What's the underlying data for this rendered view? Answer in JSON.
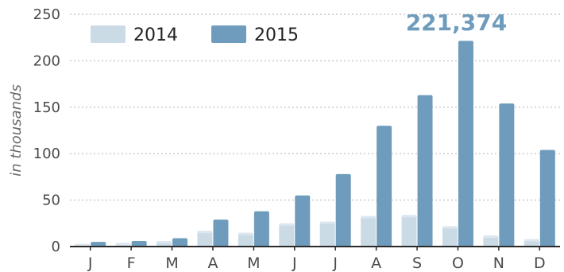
{
  "chart_data": {
    "type": "bar",
    "categories": [
      "J",
      "F",
      "M",
      "A",
      "M",
      "J",
      "J",
      "A",
      "S",
      "O",
      "N",
      "D"
    ],
    "series": [
      {
        "name": "2014",
        "color": "#cbdbe6",
        "values": [
          3,
          4,
          6,
          17,
          15,
          25,
          27,
          33,
          34,
          22,
          12,
          8
        ]
      },
      {
        "name": "2015",
        "color": "#6f9cbc",
        "values": [
          5,
          6,
          9,
          29,
          38,
          55,
          78,
          130,
          163,
          221.374,
          154,
          104
        ]
      }
    ],
    "ylabel": "in thousands",
    "ylim": [
      0,
      250
    ],
    "yticks": [
      0,
      50,
      100,
      150,
      200,
      250
    ],
    "grid": true,
    "legend": "top-left",
    "annotation": {
      "text": "221,374",
      "series": "2015",
      "category_index": 9,
      "color": "#6f9cbc"
    }
  }
}
